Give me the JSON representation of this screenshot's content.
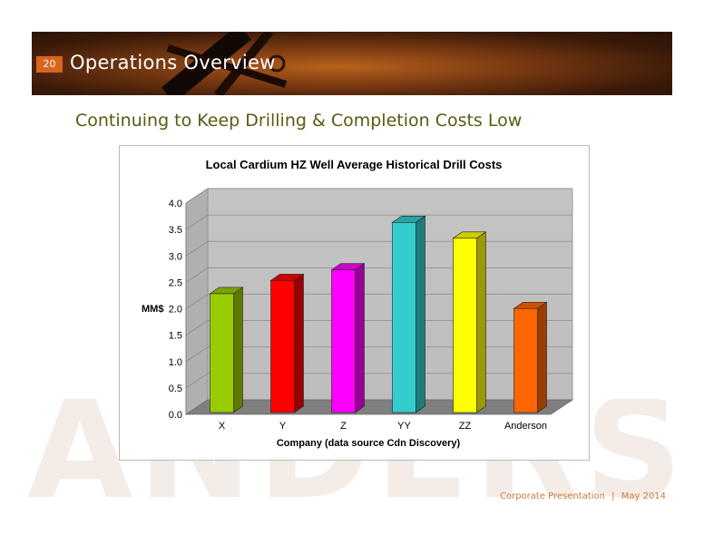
{
  "header": {
    "page_number": "20",
    "title": "Operations Overview"
  },
  "subtitle": "Continuing to Keep Drilling & Completion Costs Low",
  "watermark": "ANDERSON",
  "footer": {
    "label": "Corporate Presentation",
    "separator": "|",
    "date": "May 2014"
  },
  "chart_data": {
    "type": "bar",
    "title": "Local Cardium HZ Well Average Historical Drill Costs",
    "xlabel": "Company (data source Cdn Discovery)",
    "ylabel": "MM$",
    "categories": [
      "X",
      "Y",
      "Z",
      "YY",
      "ZZ",
      "Anderson"
    ],
    "values": [
      2.25,
      2.5,
      2.7,
      3.6,
      3.3,
      1.97
    ],
    "colors": [
      "#99cc00",
      "#ff0000",
      "#ff00ff",
      "#33cccc",
      "#ffff00",
      "#ff6600"
    ],
    "ylim": [
      0,
      4.0
    ],
    "yticks": [
      "0.0",
      "0.5",
      "1.0",
      "1.5",
      "2.0",
      "2.5",
      "3.0",
      "3.5",
      "4.0"
    ],
    "grid": true,
    "style": "3d-bar"
  }
}
